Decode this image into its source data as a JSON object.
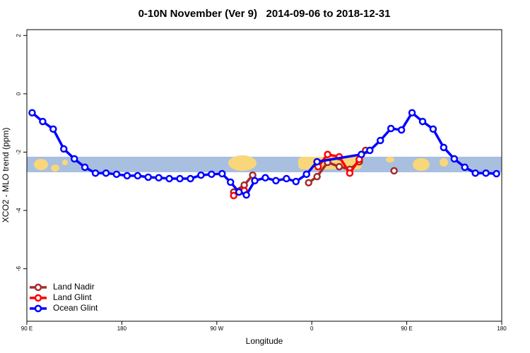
{
  "chart_data": {
    "type": "line",
    "title": "0-10N November (Ver 9)   2014-09-06 to 2018-12-31",
    "x_label": "Longitude",
    "y_label": "XCO2 - MLO trend (ppm)",
    "xlim": [
      90,
      540
    ],
    "ylim": [
      -7.8,
      2.2
    ],
    "xticks": [
      {
        "value": 90,
        "label": "90 E"
      },
      180,
      {
        "value": 270,
        "label": "90 W"
      },
      {
        "value": 360,
        "label": "0"
      },
      {
        "value": 450,
        "label": "90 E"
      },
      {
        "value": 540,
        "label": "180"
      }
    ],
    "yticks": [
      -6,
      -4,
      -2,
      0,
      2
    ],
    "legend": "bottom-left",
    "series": [
      {
        "name": "Land Nadir",
        "color": "#a52a2a",
        "x": [
          286,
          296,
          304,
          330,
          357,
          365,
          375,
          386,
          396,
          405,
          411,
          425,
          438
        ],
        "values": [
          -3.37,
          -3.13,
          -2.79,
          null,
          -3.05,
          -2.84,
          -2.35,
          -2.5,
          -2.59,
          -2.33,
          -1.94,
          null,
          -2.64
        ]
      },
      {
        "name": "Land Glint",
        "color": "#ff0000",
        "x": [
          286,
          296,
          330,
          366,
          375,
          386,
          396,
          405
        ],
        "values": [
          -3.49,
          -3.32,
          null,
          -2.5,
          -2.08,
          -2.16,
          -2.72,
          -2.25
        ]
      },
      {
        "name": "Ocean Glint",
        "color": "#0000ff",
        "x": [
          95,
          105,
          115,
          125,
          135,
          145,
          155,
          165,
          175,
          185,
          195,
          205,
          215,
          225,
          235,
          245,
          255,
          265,
          275,
          283,
          291,
          298,
          306,
          316,
          326,
          336,
          345,
          355,
          365,
          407,
          415,
          425,
          435,
          445,
          455,
          465,
          475,
          485,
          495,
          505,
          515,
          525,
          535
        ],
        "values": [
          -0.65,
          -0.95,
          -1.21,
          -1.89,
          -2.23,
          -2.52,
          -2.72,
          -2.72,
          -2.76,
          -2.81,
          -2.81,
          -2.86,
          -2.88,
          -2.91,
          -2.91,
          -2.91,
          -2.79,
          -2.76,
          -2.74,
          -3.03,
          -3.37,
          -3.47,
          -2.98,
          -2.88,
          -2.98,
          -2.91,
          -3.01,
          -2.76,
          -2.33,
          -2.08,
          -1.94,
          -1.6,
          -1.19,
          -1.24,
          -0.65,
          -0.95,
          -1.21,
          -1.84,
          -2.23,
          -2.52,
          -2.72,
          -2.72,
          -2.74
        ]
      }
    ]
  }
}
